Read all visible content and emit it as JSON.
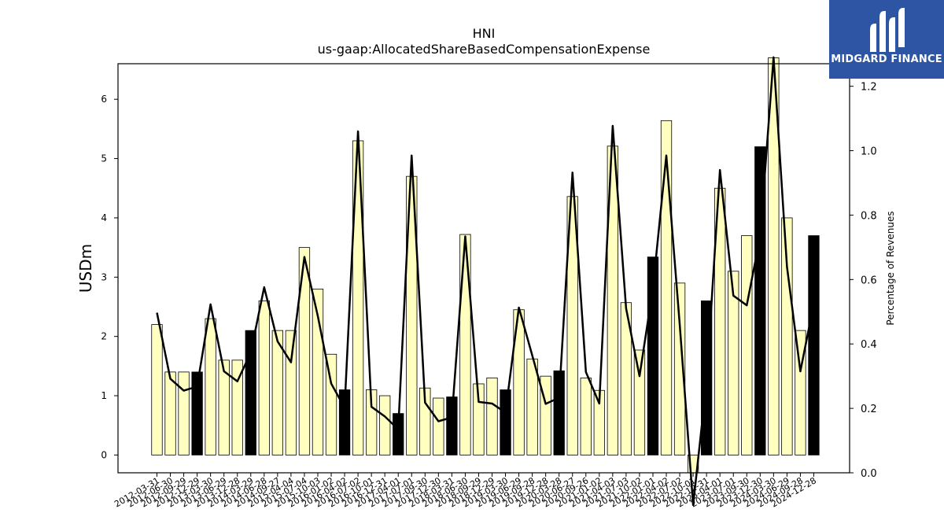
{
  "chart_data": {
    "type": "bar",
    "title": "HNI",
    "subtitle": "us-gaap:AllocatedShareBasedCompensationExpense",
    "ylabel": "USDm",
    "y2label": "Percentage of Revenues",
    "ylim": [
      -0.3,
      6.6
    ],
    "y2lim": [
      0.0,
      1.27
    ],
    "yticks": [
      0,
      1,
      2,
      3,
      4,
      5,
      6
    ],
    "y2ticks": [
      0.0,
      0.2,
      0.4,
      0.6,
      0.8,
      1.0,
      1.2
    ],
    "y2ticklabels": [
      "0.0",
      "0.2",
      "0.4",
      "0.6",
      "0.8",
      "1.0",
      "1.2"
    ],
    "categories": [
      "2012-03-31",
      "2012-06-30",
      "2012-09-29",
      "2012-12-29",
      "2013-03-30",
      "2013-06-29",
      "2013-12-28",
      "2014-03-29",
      "2014-06-28",
      "2014-09-27",
      "2015-04-04",
      "2015-07-04",
      "2015-10-03",
      "2016-01-02",
      "2016-04-02",
      "2016-07-02",
      "2016-10-01",
      "2016-12-31",
      "2017-04-01",
      "2017-07-01",
      "2017-09-30",
      "2017-12-30",
      "2018-03-31",
      "2018-06-30",
      "2018-09-29",
      "2018-12-29",
      "2019-03-30",
      "2019-06-29",
      "2019-09-28",
      "2019-12-28",
      "2020-03-28",
      "2020-06-27",
      "2020-09-26",
      "2021-01-02",
      "2021-04-03",
      "2021-07-03",
      "2021-10-02",
      "2022-01-01",
      "2022-04-02",
      "2022-07-02",
      "2022-10-01",
      "2022-12-31",
      "2023-04-01",
      "2023-07-01",
      "2023-09-30",
      "2023-12-30",
      "2024-03-30",
      "2024-06-29",
      "2024-09-28",
      "2024-12-28"
    ],
    "tick_labels": [
      "2012-03-31",
      "2012-06-30",
      "2012-09-29",
      "2012-12-29",
      "2013-03-30",
      "2013-06-29",
      "2013-12-28",
      "2014-03-29",
      "2014-06-28",
      "2014-09-27",
      "2015-04-04",
      "2015-07-04",
      "2015-10-03",
      "2016-01-02",
      "2016-04-02",
      "2016-07-02",
      "2016-10-01",
      "2016-12-31",
      "2017-04-01",
      "2017-07-01",
      "2017-09-30",
      "2017-12-30",
      "2018-03-31",
      "2018-06-30",
      "2018-09-29",
      "2018-12-29",
      "2019-03-30",
      "2019-06-29",
      "2019-09-28",
      "2019-12-28",
      "2020-03-28",
      "2020-06-27",
      "2020-09-26",
      "2021-01-02",
      "2021-04-03",
      "2021-07-03",
      "2021-10-02",
      "2022-01-01",
      "2022-04-02",
      "2022-07-02",
      "2022-10-01",
      "2022-12-31",
      "2023-04-01",
      "2023-07-01",
      "2023-09-30",
      "2023-12-30",
      "2024-03-30",
      "2024-06-29",
      "2024-09-28",
      "2024-12-28"
    ],
    "values": [
      2.2,
      1.4,
      1.4,
      1.4,
      2.3,
      1.6,
      1.6,
      2.1,
      2.6,
      2.1,
      2.1,
      3.5,
      2.8,
      1.7,
      1.1,
      5.3,
      1.1,
      1.0,
      0.7,
      4.7,
      1.13,
      0.96,
      0.98,
      3.72,
      1.2,
      1.3,
      1.1,
      2.45,
      1.62,
      1.33,
      1.42,
      4.36,
      1.3,
      1.09,
      5.21,
      2.57,
      1.77,
      3.34,
      5.64,
      2.9,
      -0.3,
      2.6,
      4.5,
      3.1,
      3.7,
      5.2,
      6.7,
      4.0,
      2.1,
      3.7
    ],
    "highlight": [
      false,
      false,
      false,
      true,
      false,
      false,
      false,
      true,
      false,
      false,
      false,
      false,
      false,
      false,
      true,
      false,
      false,
      false,
      true,
      false,
      false,
      false,
      true,
      false,
      false,
      false,
      true,
      false,
      false,
      false,
      true,
      false,
      false,
      false,
      false,
      false,
      false,
      true,
      false,
      false,
      false,
      true,
      false,
      false,
      false,
      true,
      false,
      false,
      false,
      true
    ],
    "pct_revenue": [
      0.497,
      0.292,
      0.255,
      0.268,
      0.523,
      0.315,
      0.284,
      0.373,
      0.576,
      0.408,
      0.343,
      0.67,
      0.487,
      0.277,
      0.202,
      1.06,
      0.205,
      0.175,
      0.135,
      0.985,
      0.218,
      0.16,
      0.172,
      0.734,
      0.22,
      0.215,
      0.187,
      0.513,
      0.364,
      0.214,
      0.233,
      0.932,
      0.313,
      0.215,
      1.077,
      0.51,
      0.3,
      0.573,
      0.985,
      0.46,
      -0.1,
      0.282,
      0.94,
      0.55,
      0.52,
      0.733,
      1.29,
      0.64,
      0.315,
      0.525
    ],
    "colors": {
      "bar": "#ffffc0",
      "bar_highlight": "#000000",
      "line": "#000000"
    }
  },
  "logo": {
    "text": "MIDGARD FINANCE",
    "icon": "midgard-logo-icon"
  }
}
